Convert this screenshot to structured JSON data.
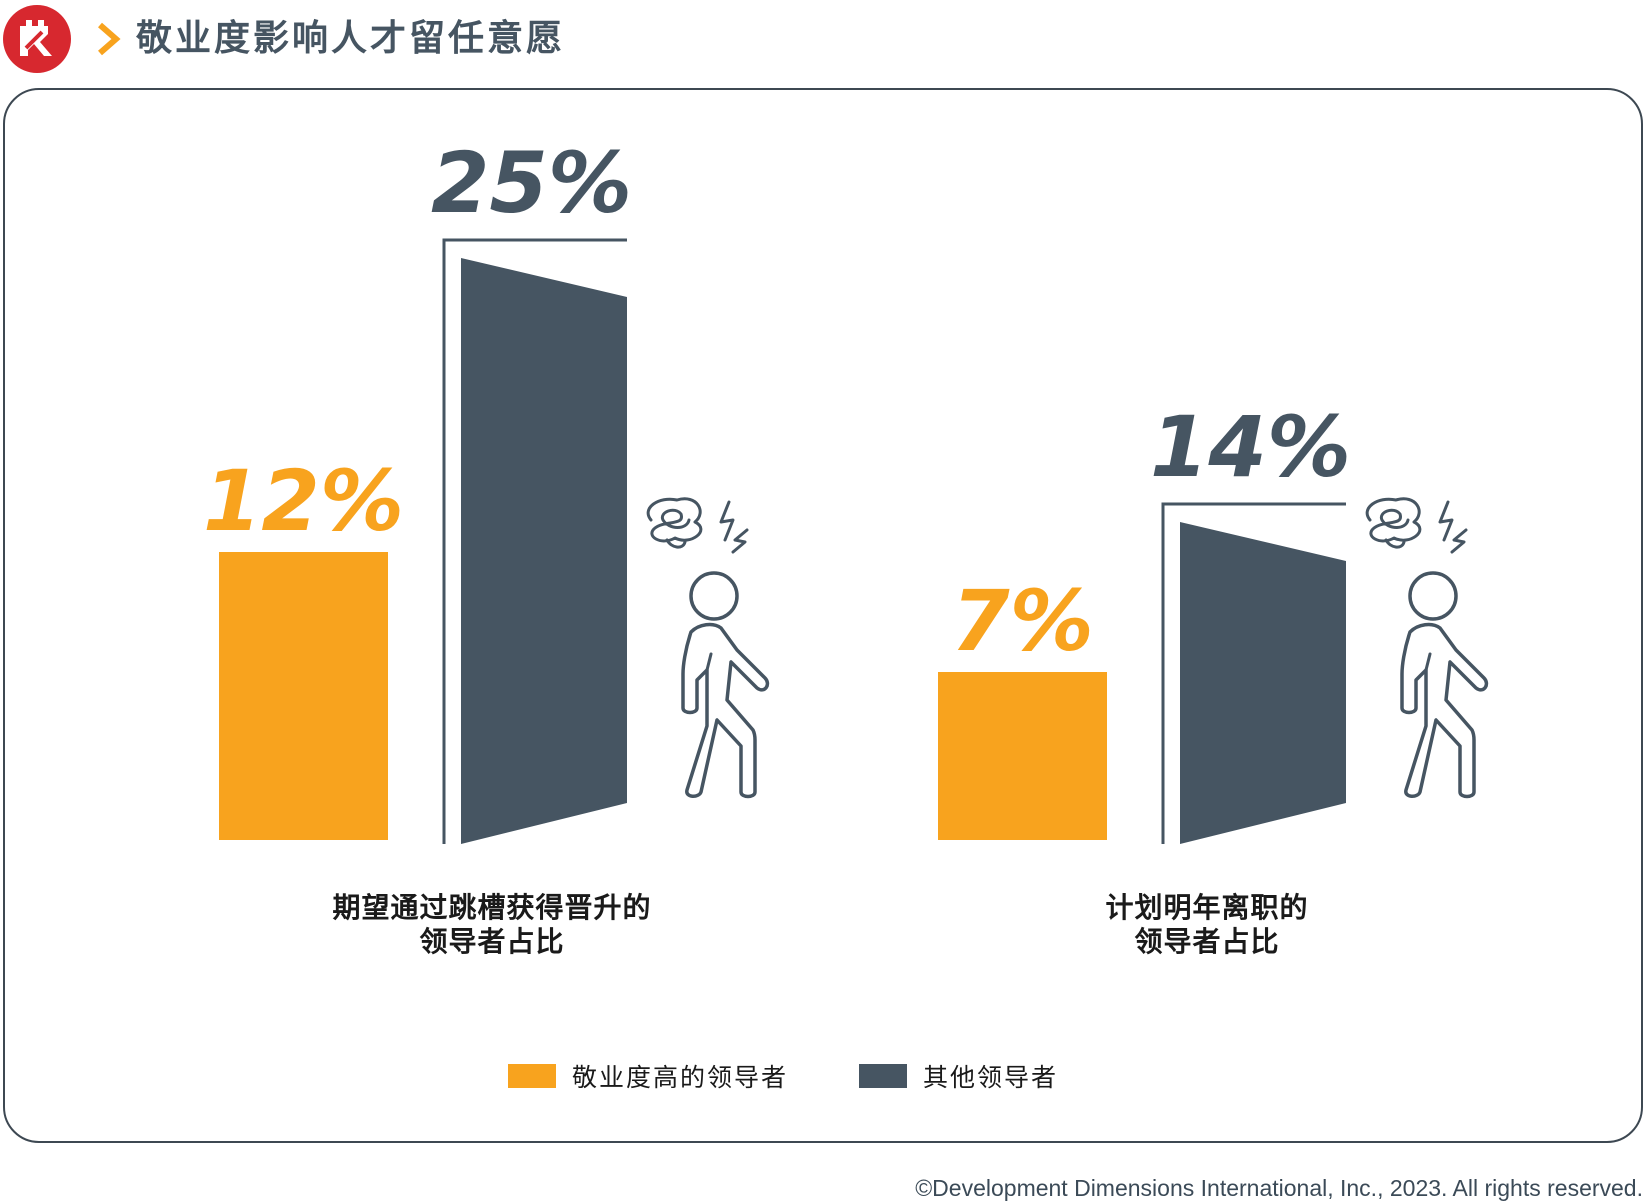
{
  "header": {
    "title": "敬业度影响人才留任意愿",
    "logo_icon": "ddi-red-logo-icon",
    "chevron_icon": "chevron-right-icon"
  },
  "colors": {
    "engaged": "#F8A31E",
    "other": "#465562",
    "brand_red": "#D7282F"
  },
  "chart_data": {
    "type": "bar",
    "unit": "%",
    "categories": [
      {
        "label_line1": "期望通过跳槽获得晋升的",
        "label_line2": "领导者占比"
      },
      {
        "label_line1": "计划明年离职的",
        "label_line2": "领导者占比"
      }
    ],
    "series": [
      {
        "name": "敬业度高的领导者",
        "color": "#F8A31E",
        "values": [
          12,
          7
        ],
        "labels": [
          "12%",
          "7%"
        ]
      },
      {
        "name": "其他领导者",
        "color": "#465562",
        "values": [
          25,
          14
        ],
        "labels": [
          "25%",
          "14%"
        ]
      }
    ],
    "ylim": [
      0,
      25
    ],
    "grid": false,
    "legend_position": "bottom-center",
    "decorations": [
      "open-door-icon",
      "stressed-walking-person-icon"
    ]
  },
  "footer": {
    "copyright": "©Development Dimensions International, Inc., 2023. All rights reserved."
  }
}
